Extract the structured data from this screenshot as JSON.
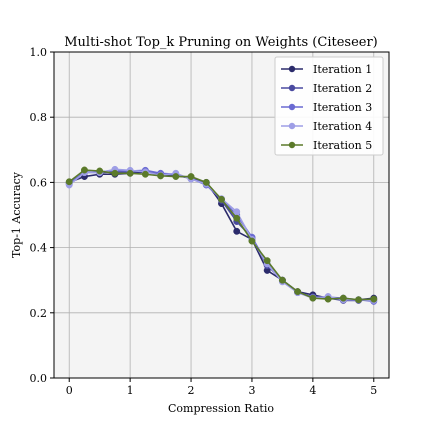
{
  "chart_data": {
    "type": "line",
    "title": "Multi-shot Top_k Pruning on Weights (Citeseer)",
    "xlabel": "Compression Ratio",
    "ylabel": "Top-1 Accuracy",
    "xlim": [
      -0.25,
      5.25
    ],
    "ylim": [
      0.0,
      1.0
    ],
    "x_ticks": [
      "0",
      "1",
      "2",
      "3",
      "4",
      "5"
    ],
    "y_ticks": [
      "0.0",
      "0.2",
      "0.4",
      "0.6",
      "0.8",
      "1.0"
    ],
    "grid": true,
    "legend_position": "top-right",
    "x": [
      0,
      0.25,
      0.5,
      0.75,
      1.0,
      1.25,
      1.5,
      1.75,
      2.0,
      2.25,
      2.5,
      2.75,
      3.0,
      3.25,
      3.5,
      3.75,
      4.0,
      4.25,
      4.5,
      4.75,
      5.0
    ],
    "series": [
      {
        "name": "Iteration 1",
        "color": "#2b2b6b",
        "values": [
          0.6,
          0.618,
          0.625,
          0.625,
          0.628,
          0.632,
          0.625,
          0.62,
          0.615,
          0.6,
          0.535,
          0.45,
          0.425,
          0.33,
          0.3,
          0.265,
          0.255,
          0.245,
          0.24,
          0.24,
          0.245
        ]
      },
      {
        "name": "Iteration 2",
        "color": "#4a4aa0",
        "values": [
          0.595,
          0.632,
          0.63,
          0.632,
          0.632,
          0.635,
          0.627,
          0.622,
          0.612,
          0.597,
          0.545,
          0.48,
          0.43,
          0.345,
          0.3,
          0.262,
          0.248,
          0.245,
          0.238,
          0.238,
          0.24
        ]
      },
      {
        "name": "Iteration 3",
        "color": "#6a6ad2",
        "values": [
          0.598,
          0.63,
          0.632,
          0.637,
          0.635,
          0.637,
          0.628,
          0.625,
          0.612,
          0.592,
          0.548,
          0.5,
          0.432,
          0.35,
          0.298,
          0.262,
          0.248,
          0.248,
          0.245,
          0.24,
          0.235
        ]
      },
      {
        "name": "Iteration 4",
        "color": "#9e9ee6",
        "values": [
          0.592,
          0.63,
          0.63,
          0.64,
          0.637,
          0.632,
          0.622,
          0.628,
          0.61,
          0.595,
          0.55,
          0.51,
          0.425,
          0.35,
          0.295,
          0.262,
          0.245,
          0.25,
          0.24,
          0.24,
          0.238
        ]
      },
      {
        "name": "Iteration 5",
        "color": "#5b7a2a",
        "values": [
          0.602,
          0.638,
          0.635,
          0.628,
          0.628,
          0.625,
          0.62,
          0.618,
          0.618,
          0.6,
          0.548,
          0.49,
          0.42,
          0.36,
          0.3,
          0.265,
          0.245,
          0.242,
          0.245,
          0.24,
          0.242
        ]
      }
    ]
  }
}
